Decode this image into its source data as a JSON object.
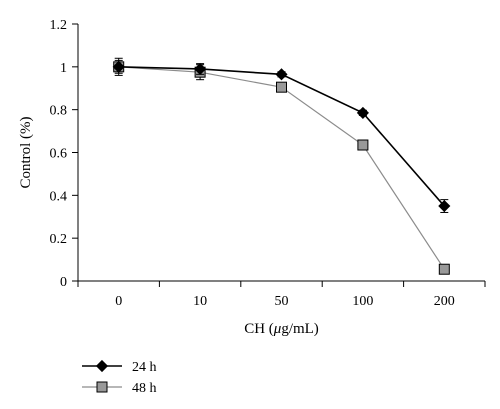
{
  "chart_data": {
    "type": "line",
    "categories": [
      "0",
      "10",
      "50",
      "100",
      "200"
    ],
    "ylabel": "Control (%)",
    "xlabel_prefix": "CH (",
    "xlabel_unit_mu": "μ",
    "xlabel_suffix": "g/mL)",
    "ylim": [
      0,
      1.2
    ],
    "yticks": [
      "0",
      "0.2",
      "0.4",
      "0.6",
      "0.8",
      "1",
      "1.2"
    ],
    "grid": false,
    "legend_position": "bottom-left",
    "series": [
      {
        "name": "24 h",
        "values": [
          1.0,
          0.99,
          0.965,
          0.785,
          0.35
        ],
        "errors": [
          0.03,
          0.025,
          0.012,
          0.012,
          0.03
        ],
        "marker": "diamond",
        "color": "#000000",
        "marker_fill": "#000000"
      },
      {
        "name": "48 h",
        "values": [
          1.0,
          0.975,
          0.905,
          0.635,
          0.055
        ],
        "errors": [
          0.04,
          0.035,
          0.012,
          0.012,
          0.015
        ],
        "marker": "square",
        "color": "#8c8c8c",
        "marker_fill": "#999999"
      }
    ]
  }
}
